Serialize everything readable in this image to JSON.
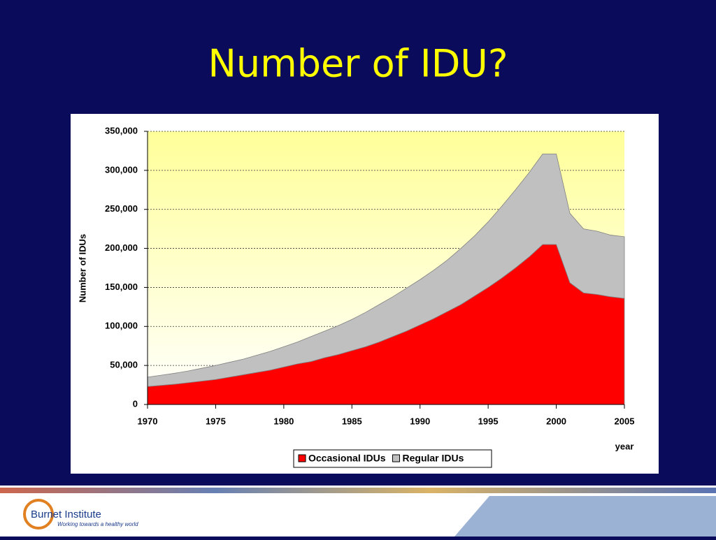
{
  "chart_data": {
    "type": "stacked_area",
    "title": "Number of IDU?",
    "y_label": "Number of IDUs",
    "x_label": "year",
    "x": [
      1970,
      1971,
      1972,
      1973,
      1974,
      1975,
      1976,
      1977,
      1978,
      1979,
      1980,
      1981,
      1982,
      1983,
      1984,
      1985,
      1986,
      1987,
      1988,
      1989,
      1990,
      1991,
      1992,
      1993,
      1994,
      1995,
      1996,
      1997,
      1998,
      1999,
      2000,
      2001,
      2002,
      2003,
      2004,
      2005
    ],
    "series": [
      {
        "name": "Occasional IDUs",
        "color": "#ff0000",
        "values": [
          23000,
          24500,
          26000,
          28000,
          30000,
          32000,
          35000,
          38000,
          41000,
          44000,
          48000,
          52000,
          55000,
          60000,
          64000,
          69000,
          74000,
          80000,
          87000,
          94000,
          102000,
          110000,
          119000,
          128000,
          139000,
          150000,
          162000,
          175000,
          189000,
          205000,
          205000,
          156000,
          143000,
          141000,
          138000,
          136000
        ]
      },
      {
        "name": "Regular IDUs",
        "color": "#c0c0c0",
        "values": [
          12000,
          13000,
          14000,
          15000,
          16500,
          18000,
          19000,
          20000,
          22000,
          24000,
          26000,
          28000,
          32000,
          34000,
          37000,
          40000,
          44000,
          48000,
          51000,
          55000,
          58000,
          62000,
          66000,
          72000,
          77000,
          84000,
          92000,
          100000,
          108000,
          116000,
          116000,
          89000,
          82000,
          81000,
          79000,
          79000
        ]
      }
    ],
    "xlim": [
      1970,
      2005
    ],
    "xticks": [
      1970,
      1975,
      1980,
      1985,
      1990,
      1995,
      2000,
      2005
    ],
    "ylim": [
      0,
      350000
    ],
    "yticks": [
      0,
      {
        "value": 50000,
        "label": "50,000"
      },
      {
        "value": 100000,
        "label": "100,000"
      },
      {
        "value": 150000,
        "label": "150,000"
      },
      {
        "value": 200000,
        "label": "200,000"
      },
      {
        "value": 250000,
        "label": "250,000"
      },
      {
        "value": 300000,
        "label": "300,000"
      },
      {
        "value": 350000,
        "label": "350,000"
      }
    ],
    "grid": true,
    "legend": "bottom"
  },
  "footer": {
    "logo_name": "Burnet Institute",
    "logo_tagline": "Working towards a healthy world"
  }
}
